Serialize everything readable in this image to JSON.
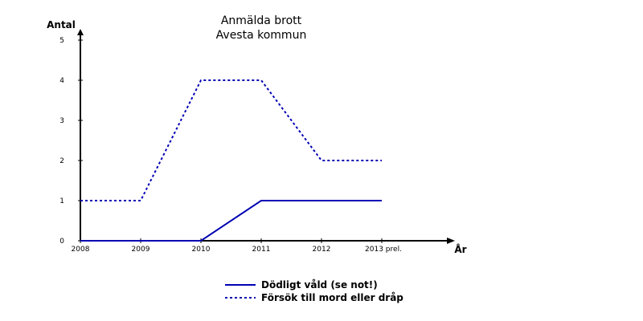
{
  "chart_data": {
    "type": "line",
    "title": [
      "Anmälda brott",
      "Avesta kommun"
    ],
    "ylabel": "Antal",
    "xlabel": "År",
    "categories": [
      "2008",
      "2009",
      "2010",
      "2011",
      "2012",
      "2013 prel."
    ],
    "ylim": [
      0,
      5
    ],
    "yticks": [
      "0",
      "1",
      "2",
      "3",
      "4",
      "5"
    ],
    "grid": false,
    "legend_position": "bottom",
    "series": [
      {
        "name": "Dödligt våld (se not!)",
        "values": [
          0,
          0,
          0,
          1,
          1,
          1
        ],
        "color": "#0000b3",
        "style": "solid"
      },
      {
        "name": "Försök till mord eller dråp",
        "values": [
          1,
          1,
          4,
          4,
          2,
          2
        ],
        "color": "#0000b3",
        "style": "dotted"
      }
    ]
  }
}
